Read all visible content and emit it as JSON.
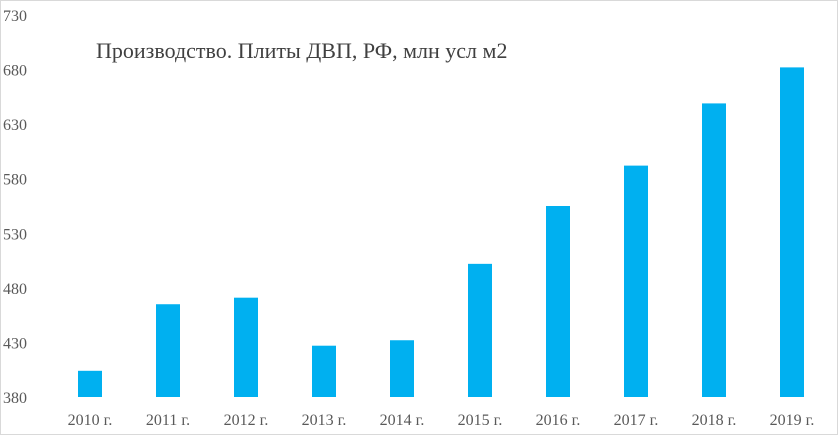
{
  "chart_data": {
    "type": "bar",
    "title": "Производство. Плиты ДВП, РФ, млн усл м2",
    "xlabel": "",
    "ylabel": "",
    "categories": [
      "2010 г.",
      "2011 г.",
      "2012 г.",
      "2013 г.",
      "2014 г.",
      "2015 г.",
      "2016 г.",
      "2017 г.",
      "2018 г.",
      "2019 г."
    ],
    "values": [
      404,
      465,
      471,
      427,
      432,
      502,
      555,
      592,
      649,
      682
    ],
    "ylim": [
      380,
      730
    ],
    "yticks": [
      "380",
      "430",
      "480",
      "530",
      "580",
      "630",
      "680",
      "730"
    ],
    "grid": false,
    "legend": "none",
    "bar_color": "#00b0f0"
  }
}
